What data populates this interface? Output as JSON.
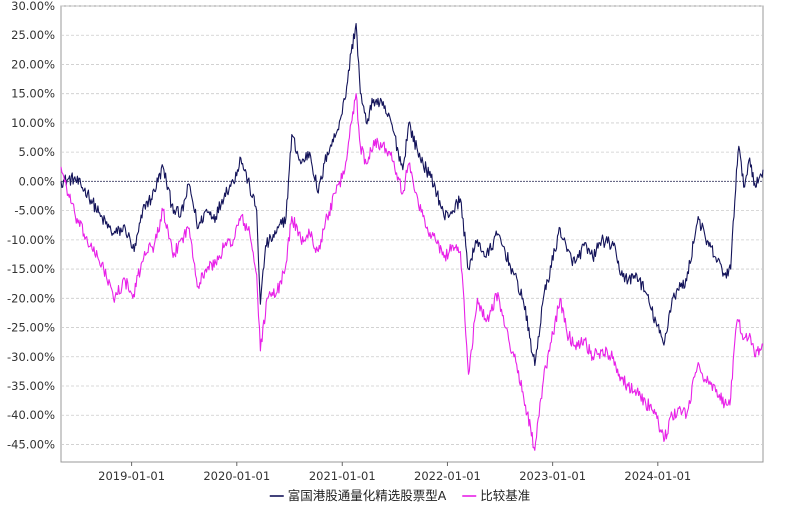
{
  "chart_data": {
    "type": "line",
    "title": "",
    "xlabel": "",
    "ylabel": "",
    "x_range": [
      "2018-05-01",
      "2024-12-31"
    ],
    "x_ticks": [
      "2019-01-01",
      "2020-01-01",
      "2021-01-01",
      "2022-01-01",
      "2023-01-01",
      "2024-01-01"
    ],
    "ylim": [
      -0.48,
      0.3
    ],
    "y_ticks": [
      0.3,
      0.25,
      0.2,
      0.15,
      0.1,
      0.05,
      0.0,
      -0.05,
      -0.1,
      -0.15,
      -0.2,
      -0.25,
      -0.3,
      -0.35,
      -0.4,
      -0.45
    ],
    "y_tick_labels": [
      "30.00%",
      "25.00%",
      "20.00%",
      "15.00%",
      "10.00%",
      "5.00%",
      "0.00%",
      "-5.00%",
      "-10.00%",
      "-15.00%",
      "-20.00%",
      "-25.00%",
      "-30.00%",
      "-35.00%",
      "-40.00%",
      "-45.00%"
    ],
    "grid": true,
    "legend_position": "bottom-center",
    "zero_line": true,
    "series": [
      {
        "name": "富国港股通量化精选股票型A",
        "color": "#14145a",
        "points": [
          [
            "2018-05-01",
            0.0
          ],
          [
            "2018-06-15",
            0.005
          ],
          [
            "2018-08-01",
            -0.02
          ],
          [
            "2018-09-15",
            -0.06
          ],
          [
            "2018-10-31",
            -0.09
          ],
          [
            "2018-12-10",
            -0.08
          ],
          [
            "2019-01-10",
            -0.12
          ],
          [
            "2019-02-15",
            -0.04
          ],
          [
            "2019-03-10",
            -0.03
          ],
          [
            "2019-04-20",
            0.025
          ],
          [
            "2019-05-20",
            -0.04
          ],
          [
            "2019-06-20",
            -0.06
          ],
          [
            "2019-07-20",
            -0.005
          ],
          [
            "2019-08-20",
            -0.08
          ],
          [
            "2019-09-15",
            -0.05
          ],
          [
            "2019-10-20",
            -0.06
          ],
          [
            "2019-11-20",
            -0.02
          ],
          [
            "2019-12-20",
            0.0
          ],
          [
            "2020-01-15",
            0.04
          ],
          [
            "2020-02-15",
            -0.01
          ],
          [
            "2020-03-10",
            -0.05
          ],
          [
            "2020-03-23",
            -0.21
          ],
          [
            "2020-04-10",
            -0.11
          ],
          [
            "2020-05-15",
            -0.09
          ],
          [
            "2020-06-20",
            -0.06
          ],
          [
            "2020-07-10",
            0.08
          ],
          [
            "2020-08-10",
            0.03
          ],
          [
            "2020-09-10",
            0.05
          ],
          [
            "2020-10-10",
            -0.02
          ],
          [
            "2020-11-10",
            0.05
          ],
          [
            "2020-12-10",
            0.08
          ],
          [
            "2021-01-10",
            0.14
          ],
          [
            "2021-02-01",
            0.22
          ],
          [
            "2021-02-18",
            0.27
          ],
          [
            "2021-03-05",
            0.15
          ],
          [
            "2021-03-25",
            0.1
          ],
          [
            "2021-04-20",
            0.14
          ],
          [
            "2021-05-20",
            0.13
          ],
          [
            "2021-06-20",
            0.1
          ],
          [
            "2021-07-30",
            0.02
          ],
          [
            "2021-08-20",
            0.1
          ],
          [
            "2021-09-20",
            0.05
          ],
          [
            "2021-10-20",
            0.02
          ],
          [
            "2021-11-20",
            -0.01
          ],
          [
            "2021-12-20",
            -0.06
          ],
          [
            "2022-01-20",
            -0.05
          ],
          [
            "2022-02-15",
            -0.03
          ],
          [
            "2022-03-15",
            -0.15
          ],
          [
            "2022-04-15",
            -0.1
          ],
          [
            "2022-05-15",
            -0.13
          ],
          [
            "2022-06-25",
            -0.09
          ],
          [
            "2022-07-20",
            -0.12
          ],
          [
            "2022-08-20",
            -0.16
          ],
          [
            "2022-09-20",
            -0.2
          ],
          [
            "2022-10-31",
            -0.315
          ],
          [
            "2022-11-30",
            -0.2
          ],
          [
            "2023-01-27",
            -0.08
          ],
          [
            "2023-02-20",
            -0.12
          ],
          [
            "2023-03-20",
            -0.14
          ],
          [
            "2023-04-20",
            -0.11
          ],
          [
            "2023-05-20",
            -0.13
          ],
          [
            "2023-06-20",
            -0.1
          ],
          [
            "2023-07-31",
            -0.11
          ],
          [
            "2023-08-20",
            -0.15
          ],
          [
            "2023-09-20",
            -0.17
          ],
          [
            "2023-10-20",
            -0.16
          ],
          [
            "2023-11-20",
            -0.19
          ],
          [
            "2023-12-10",
            -0.22
          ],
          [
            "2024-01-22",
            -0.28
          ],
          [
            "2024-02-20",
            -0.2
          ],
          [
            "2024-03-20",
            -0.18
          ],
          [
            "2024-04-10",
            -0.17
          ],
          [
            "2024-05-20",
            -0.06
          ],
          [
            "2024-06-15",
            -0.1
          ],
          [
            "2024-07-20",
            -0.13
          ],
          [
            "2024-08-20",
            -0.16
          ],
          [
            "2024-09-10",
            -0.15
          ],
          [
            "2024-09-30",
            0.02
          ],
          [
            "2024-10-08",
            0.06
          ],
          [
            "2024-10-25",
            -0.01
          ],
          [
            "2024-11-15",
            0.04
          ],
          [
            "2024-12-05",
            -0.01
          ],
          [
            "2024-12-31",
            0.02
          ]
        ]
      },
      {
        "name": "比较基准",
        "color": "#e822e8",
        "points": [
          [
            "2018-05-01",
            0.025
          ],
          [
            "2018-05-20",
            -0.01
          ],
          [
            "2018-06-20",
            -0.06
          ],
          [
            "2018-07-20",
            -0.09
          ],
          [
            "2018-08-20",
            -0.12
          ],
          [
            "2018-09-20",
            -0.14
          ],
          [
            "2018-10-30",
            -0.2
          ],
          [
            "2018-12-10",
            -0.17
          ],
          [
            "2019-01-05",
            -0.2
          ],
          [
            "2019-02-15",
            -0.12
          ],
          [
            "2019-03-20",
            -0.11
          ],
          [
            "2019-04-20",
            -0.05
          ],
          [
            "2019-05-25",
            -0.13
          ],
          [
            "2019-06-20",
            -0.1
          ],
          [
            "2019-07-20",
            -0.08
          ],
          [
            "2019-08-20",
            -0.18
          ],
          [
            "2019-09-15",
            -0.15
          ],
          [
            "2019-10-20",
            -0.14
          ],
          [
            "2019-11-20",
            -0.11
          ],
          [
            "2019-12-20",
            -0.1
          ],
          [
            "2020-01-15",
            -0.06
          ],
          [
            "2020-02-15",
            -0.09
          ],
          [
            "2020-03-10",
            -0.16
          ],
          [
            "2020-03-23",
            -0.29
          ],
          [
            "2020-04-15",
            -0.2
          ],
          [
            "2020-05-20",
            -0.19
          ],
          [
            "2020-06-20",
            -0.14
          ],
          [
            "2020-07-10",
            -0.06
          ],
          [
            "2020-08-10",
            -0.1
          ],
          [
            "2020-09-10",
            -0.09
          ],
          [
            "2020-10-10",
            -0.12
          ],
          [
            "2020-11-10",
            -0.06
          ],
          [
            "2020-12-10",
            -0.02
          ],
          [
            "2021-01-10",
            0.02
          ],
          [
            "2021-02-01",
            0.1
          ],
          [
            "2021-02-18",
            0.15
          ],
          [
            "2021-03-05",
            0.06
          ],
          [
            "2021-03-25",
            0.03
          ],
          [
            "2021-04-20",
            0.07
          ],
          [
            "2021-05-20",
            0.06
          ],
          [
            "2021-06-20",
            0.05
          ],
          [
            "2021-07-30",
            -0.02
          ],
          [
            "2021-08-20",
            0.03
          ],
          [
            "2021-09-20",
            -0.03
          ],
          [
            "2021-10-20",
            -0.08
          ],
          [
            "2021-11-20",
            -0.1
          ],
          [
            "2021-12-20",
            -0.13
          ],
          [
            "2022-01-20",
            -0.11
          ],
          [
            "2022-02-15",
            -0.12
          ],
          [
            "2022-03-15",
            -0.33
          ],
          [
            "2022-04-15",
            -0.2
          ],
          [
            "2022-05-15",
            -0.24
          ],
          [
            "2022-06-25",
            -0.19
          ],
          [
            "2022-07-20",
            -0.25
          ],
          [
            "2022-08-20",
            -0.3
          ],
          [
            "2022-09-20",
            -0.36
          ],
          [
            "2022-10-31",
            -0.46
          ],
          [
            "2022-11-30",
            -0.34
          ],
          [
            "2023-01-27",
            -0.2
          ],
          [
            "2023-02-20",
            -0.26
          ],
          [
            "2023-03-20",
            -0.28
          ],
          [
            "2023-04-20",
            -0.27
          ],
          [
            "2023-05-20",
            -0.3
          ],
          [
            "2023-06-20",
            -0.29
          ],
          [
            "2023-07-31",
            -0.3
          ],
          [
            "2023-08-20",
            -0.33
          ],
          [
            "2023-09-20",
            -0.35
          ],
          [
            "2023-10-20",
            -0.36
          ],
          [
            "2023-11-20",
            -0.38
          ],
          [
            "2023-12-20",
            -0.39
          ],
          [
            "2024-01-22",
            -0.445
          ],
          [
            "2024-02-20",
            -0.4
          ],
          [
            "2024-03-20",
            -0.39
          ],
          [
            "2024-04-10",
            -0.4
          ],
          [
            "2024-05-20",
            -0.31
          ],
          [
            "2024-06-15",
            -0.34
          ],
          [
            "2024-07-20",
            -0.36
          ],
          [
            "2024-08-20",
            -0.38
          ],
          [
            "2024-09-10",
            -0.37
          ],
          [
            "2024-09-30",
            -0.245
          ],
          [
            "2024-10-08",
            -0.24
          ],
          [
            "2024-10-25",
            -0.27
          ],
          [
            "2024-11-15",
            -0.26
          ],
          [
            "2024-12-05",
            -0.3
          ],
          [
            "2024-12-31",
            -0.28
          ]
        ]
      }
    ]
  }
}
